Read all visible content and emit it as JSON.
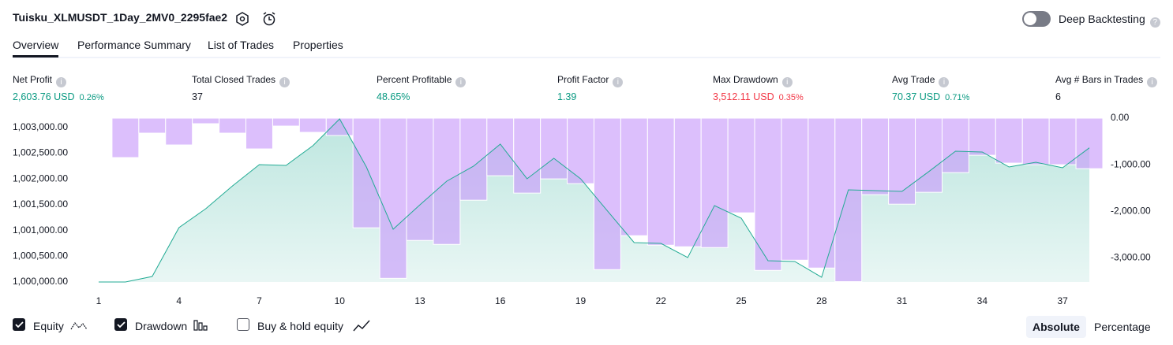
{
  "header": {
    "title": "Tuisku_XLMUSDT_1Day_2MV0_2295fae2",
    "deep_backtesting": "Deep Backtesting"
  },
  "tabs": [
    "Overview",
    "Performance Summary",
    "List of Trades",
    "Properties"
  ],
  "active_tab": 0,
  "stats": [
    {
      "label": "Net Profit",
      "value": "2,603.76 USD",
      "percent": "0.26%",
      "color": "#089981"
    },
    {
      "label": "Total Closed Trades",
      "value": "37",
      "color": "#131722"
    },
    {
      "label": "Percent Profitable",
      "value": "48.65%",
      "color": "#089981"
    },
    {
      "label": "Profit Factor",
      "value": "1.39",
      "color": "#089981"
    },
    {
      "label": "Max Drawdown",
      "value": "3,512.11 USD",
      "percent": "0.35%",
      "color": "#f23645"
    },
    {
      "label": "Avg Trade",
      "value": "70.37 USD",
      "percent": "0.71%",
      "color": "#089981"
    },
    {
      "label": "Avg # Bars in Trades",
      "value": "6",
      "color": "#131722"
    }
  ],
  "chart_data": {
    "type": "combo",
    "x": [
      1,
      2,
      3,
      4,
      5,
      6,
      7,
      8,
      9,
      10,
      11,
      12,
      13,
      14,
      15,
      16,
      17,
      18,
      19,
      20,
      21,
      22,
      23,
      24,
      25,
      26,
      27,
      28,
      29,
      30,
      31,
      32,
      33,
      34,
      35,
      36,
      37,
      38
    ],
    "xlim": [
      0.5,
      38.5
    ],
    "xticks": [
      1,
      4,
      7,
      10,
      13,
      16,
      19,
      22,
      25,
      28,
      31,
      34,
      37
    ],
    "ylim": [
      1000000,
      1003180
    ],
    "yticks": [
      {
        "value": 1000000,
        "label": "1,000,000.00"
      },
      {
        "value": 1000500,
        "label": "1,000,500.00"
      },
      {
        "value": 1001000,
        "label": "1,001,000.00"
      },
      {
        "value": 1001500,
        "label": "1,001,500.00"
      },
      {
        "value": 1002000,
        "label": "1,002,000.00"
      },
      {
        "value": 1002500,
        "label": "1,002,500.00"
      },
      {
        "value": 1003000,
        "label": "1,003,000.00"
      }
    ],
    "y2lim": [
      -3520,
      0
    ],
    "y2ticks": [
      {
        "value": 0,
        "label": "0.00"
      },
      {
        "value": -1000,
        "label": "-1,000.00"
      },
      {
        "value": -2000,
        "label": "-2,000.00"
      },
      {
        "value": -3000,
        "label": "-3,000.00"
      }
    ],
    "series": [
      {
        "name": "Equity",
        "type": "area",
        "color": "#22ab94",
        "checked": true,
        "values": [
          1000000,
          1000000,
          1000107,
          1001055,
          1001422,
          1001865,
          1002278,
          1002263,
          1002645,
          1003165,
          1002232,
          1001024,
          1001498,
          1001957,
          1002248,
          1002676,
          1002003,
          1002400,
          1002003,
          1001380,
          1000765,
          1000749,
          1000474,
          1001483,
          1001238,
          1000413,
          1000398,
          1000092,
          1001789,
          1001774,
          1001758,
          1002141,
          1002538,
          1002523,
          1002232,
          1002324,
          1002217,
          1002603.76
        ]
      },
      {
        "name": "Drawdown",
        "type": "bar",
        "axis": "y2",
        "color": "#c99cfb",
        "checked": true,
        "values": [
          -15,
          -847,
          -322,
          -576,
          -119,
          -322,
          -661,
          -170,
          -305,
          -373,
          -2356,
          -3441,
          -2627,
          -2712,
          -1763,
          -1237,
          -1610,
          -1305,
          -1407,
          -3254,
          -2525,
          -2729,
          -2763,
          -2780,
          -2034,
          -3271,
          -3051,
          -3220,
          -3512.11,
          -1644,
          -1848,
          -1593,
          -1170,
          -797,
          -966,
          -1000,
          -1000,
          -1085
        ]
      }
    ]
  },
  "footer": {
    "buy_hold": "Buy & hold equity",
    "buy_hold_checked": false,
    "modes": [
      "Absolute",
      "Percentage"
    ],
    "active_mode": 0
  }
}
